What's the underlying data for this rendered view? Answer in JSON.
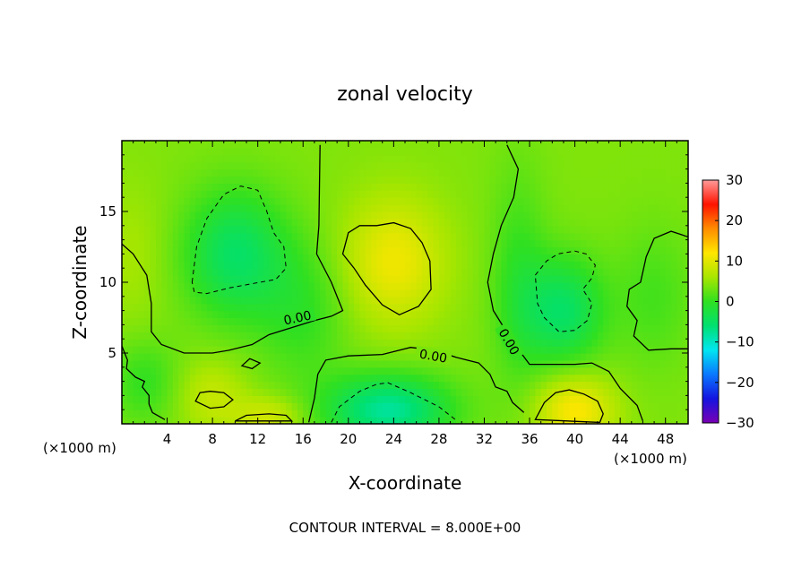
{
  "chart_data": {
    "type": "heatmap",
    "title": "zonal velocity",
    "xlabel": "X-coordinate",
    "ylabel": "Z-coordinate",
    "x_unit_left": "(×1000 m)",
    "x_unit_right": "(×1000 m)",
    "xlim": [
      0,
      50
    ],
    "ylim": [
      0,
      20
    ],
    "xticks": [
      4,
      8,
      12,
      16,
      20,
      24,
      28,
      32,
      36,
      40,
      44,
      48
    ],
    "yticks": [
      5,
      10,
      15
    ],
    "colorbar": {
      "min": -30,
      "max": 30,
      "ticks": [
        30,
        20,
        10,
        0,
        -10,
        -20,
        -30
      ],
      "colors": [
        "#7a00b4",
        "#1414e0",
        "#0a78ff",
        "#00e6f0",
        "#00e070",
        "#30e020",
        "#a8e600",
        "#ffe600",
        "#ff8c00",
        "#ff1400",
        "#ff9a9a"
      ]
    },
    "background_value": 4,
    "features": [
      {
        "cx": 10,
        "cz": 12,
        "sx": 4.5,
        "sz": 4.5,
        "value": -9
      },
      {
        "cx": 39,
        "cz": 8,
        "sx": 3.5,
        "sz": 3.8,
        "value": -9
      },
      {
        "cx": 24,
        "cz": 11.5,
        "sx": 4.5,
        "sz": 4.5,
        "value": 7
      },
      {
        "cx": 23.5,
        "cz": 1,
        "sx": 5.5,
        "sz": 2.5,
        "value": -12
      },
      {
        "cx": 40,
        "cz": 1,
        "sx": 3.5,
        "sz": 2.5,
        "value": 8
      },
      {
        "cx": 8,
        "cz": 2,
        "sx": 3,
        "sz": 2.5,
        "value": 4
      },
      {
        "cx": 13,
        "cz": 0.5,
        "sx": 3,
        "sz": 1.5,
        "value": 5
      },
      {
        "cx": 47,
        "cz": 9,
        "sx": 3.5,
        "sz": 5,
        "value": -3
      },
      {
        "cx": 1,
        "cz": 12,
        "sx": 3,
        "sz": 5,
        "value": 2
      },
      {
        "cx": 35,
        "cz": 10,
        "sx": 2.5,
        "sz": 8,
        "value": -4
      },
      {
        "cx": 16,
        "cz": 8,
        "sx": 4,
        "sz": 5,
        "value": -4
      },
      {
        "cx": 2,
        "cz": 3,
        "sx": 3,
        "sz": 3,
        "value": -4
      }
    ],
    "contour_labels": [
      {
        "text": "0.00",
        "x": 15.5,
        "z": 7.5,
        "angle": -12
      },
      {
        "text": "0.00",
        "x": 27.5,
        "z": 4.8,
        "angle": 10
      },
      {
        "text": "0.00",
        "x": 34.2,
        "z": 5.8,
        "angle": 60
      }
    ],
    "contours": [
      {
        "style": "solid",
        "points": [
          [
            0,
            12.7
          ],
          [
            1,
            12
          ],
          [
            2.2,
            10.5
          ],
          [
            2.6,
            8.5
          ],
          [
            2.6,
            6.5
          ],
          [
            3.5,
            5.6
          ],
          [
            5.5,
            5.0
          ],
          [
            8,
            5.0
          ],
          [
            9.5,
            5.2
          ],
          [
            11.5,
            5.6
          ],
          [
            13,
            6.3
          ],
          [
            15,
            6.8
          ],
          [
            17,
            7.3
          ],
          [
            18.5,
            7.6
          ],
          [
            19.5,
            8.0
          ],
          [
            18.5,
            10
          ],
          [
            17.2,
            12
          ],
          [
            17.4,
            14
          ],
          [
            17.5,
            19.7
          ]
        ]
      },
      {
        "style": "solid",
        "points": [
          [
            34,
            19.7
          ],
          [
            35,
            18
          ],
          [
            34.6,
            16
          ],
          [
            33.5,
            14
          ],
          [
            32.8,
            12
          ],
          [
            32.3,
            10
          ],
          [
            32.8,
            8
          ],
          [
            34.5,
            5.8
          ],
          [
            36,
            4.2
          ],
          [
            38,
            4.2
          ],
          [
            40,
            4.2
          ],
          [
            41.5,
            4.3
          ],
          [
            43,
            3.7
          ],
          [
            44,
            2.5
          ],
          [
            45.5,
            1.3
          ],
          [
            46,
            0.2
          ]
        ]
      },
      {
        "style": "solid",
        "points": [
          [
            16.5,
            0.1
          ],
          [
            17,
            1.8
          ],
          [
            17.3,
            3.5
          ],
          [
            18,
            4.5
          ],
          [
            20,
            4.8
          ],
          [
            23,
            4.9
          ],
          [
            25.5,
            5.4
          ],
          [
            27.5,
            5.2
          ],
          [
            29.5,
            4.7
          ],
          [
            31.5,
            4.3
          ],
          [
            32.5,
            3.5
          ],
          [
            33,
            2.6
          ],
          [
            34,
            2.3
          ],
          [
            34.5,
            1.5
          ],
          [
            35.5,
            0.8
          ]
        ]
      },
      {
        "style": "solid",
        "points": [
          [
            0,
            5.5
          ],
          [
            0.5,
            4.5
          ],
          [
            0.4,
            3.9
          ],
          [
            1.2,
            3.3
          ],
          [
            2,
            3.0
          ],
          [
            1.8,
            2.6
          ],
          [
            2.4,
            2.0
          ],
          [
            2.4,
            1.4
          ],
          [
            2.7,
            0.8
          ],
          [
            3.8,
            0.3
          ]
        ]
      },
      {
        "style": "solid",
        "closed": true,
        "points": [
          [
            20,
            13.5
          ],
          [
            21,
            14
          ],
          [
            22.5,
            14
          ],
          [
            24,
            14.2
          ],
          [
            25.5,
            13.8
          ],
          [
            26.5,
            12.8
          ],
          [
            27.2,
            11.5
          ],
          [
            27.3,
            9.5
          ],
          [
            26.2,
            8.3
          ],
          [
            24.5,
            7.7
          ],
          [
            23,
            8.4
          ],
          [
            21.5,
            9.8
          ],
          [
            20.5,
            11
          ],
          [
            19.5,
            12
          ]
        ]
      },
      {
        "style": "solid",
        "closed": true,
        "points": [
          [
            6.5,
            1.6
          ],
          [
            6.9,
            2.2
          ],
          [
            7.8,
            2.3
          ],
          [
            9,
            2.2
          ],
          [
            9.8,
            1.7
          ],
          [
            9,
            1.2
          ],
          [
            7.8,
            1.1
          ]
        ]
      },
      {
        "style": "solid",
        "closed": true,
        "points": [
          [
            10,
            0.2
          ],
          [
            11,
            0.6
          ],
          [
            13,
            0.7
          ],
          [
            14.5,
            0.6
          ],
          [
            15,
            0.2
          ]
        ]
      },
      {
        "style": "solid",
        "closed": true,
        "points": [
          [
            10.6,
            4.1
          ],
          [
            11.3,
            4.6
          ],
          [
            12.2,
            4.3
          ],
          [
            11.5,
            3.9
          ]
        ]
      },
      {
        "style": "solid",
        "closed": true,
        "points": [
          [
            36.5,
            0.3
          ],
          [
            37.3,
            1.5
          ],
          [
            38.3,
            2.2
          ],
          [
            39.5,
            2.4
          ],
          [
            40.8,
            2.1
          ],
          [
            42,
            1.6
          ],
          [
            42.5,
            0.7
          ],
          [
            42.2,
            0.1
          ]
        ]
      },
      {
        "style": "solid",
        "points": [
          [
            50,
            13.2
          ],
          [
            48.5,
            13.6
          ],
          [
            47,
            13.1
          ],
          [
            46.3,
            11.8
          ],
          [
            45.8,
            10
          ],
          [
            44.8,
            9.5
          ],
          [
            44.6,
            8.3
          ],
          [
            45.5,
            7.3
          ],
          [
            45.2,
            6.2
          ],
          [
            46.5,
            5.2
          ],
          [
            48.5,
            5.3
          ],
          [
            50,
            5.3
          ]
        ]
      },
      {
        "style": "dashed",
        "closed": true,
        "points": [
          [
            6.2,
            10
          ],
          [
            6.6,
            12.5
          ],
          [
            7.5,
            14.5
          ],
          [
            9,
            16.2
          ],
          [
            10.5,
            16.8
          ],
          [
            12,
            16.5
          ],
          [
            12.8,
            15
          ],
          [
            13.4,
            13.5
          ],
          [
            14.3,
            12.5
          ],
          [
            14.5,
            11
          ],
          [
            13.6,
            10.2
          ],
          [
            11.5,
            9.9
          ],
          [
            9.5,
            9.6
          ],
          [
            7.5,
            9.2
          ],
          [
            6.4,
            9.3
          ]
        ]
      },
      {
        "style": "dashed",
        "closed": true,
        "points": [
          [
            36.5,
            10.5
          ],
          [
            37.5,
            11.5
          ],
          [
            38.5,
            12
          ],
          [
            40,
            12.2
          ],
          [
            41,
            12
          ],
          [
            41.8,
            11.2
          ],
          [
            41.5,
            10.3
          ],
          [
            40.7,
            9.5
          ],
          [
            41.5,
            8.5
          ],
          [
            41.1,
            7.3
          ],
          [
            40,
            6.6
          ],
          [
            38.6,
            6.5
          ],
          [
            37.3,
            7.5
          ],
          [
            36.7,
            8.5
          ]
        ]
      },
      {
        "style": "dashed",
        "points": [
          [
            18.5,
            0.1
          ],
          [
            19.2,
            1.2
          ],
          [
            21,
            2.3
          ],
          [
            22.5,
            2.8
          ],
          [
            23.5,
            2.9
          ],
          [
            25.5,
            2.2
          ],
          [
            27,
            1.6
          ],
          [
            28,
            1.2
          ],
          [
            29.6,
            0.2
          ]
        ]
      }
    ],
    "footnote": "CONTOUR INTERVAL = 8.000E+00"
  }
}
